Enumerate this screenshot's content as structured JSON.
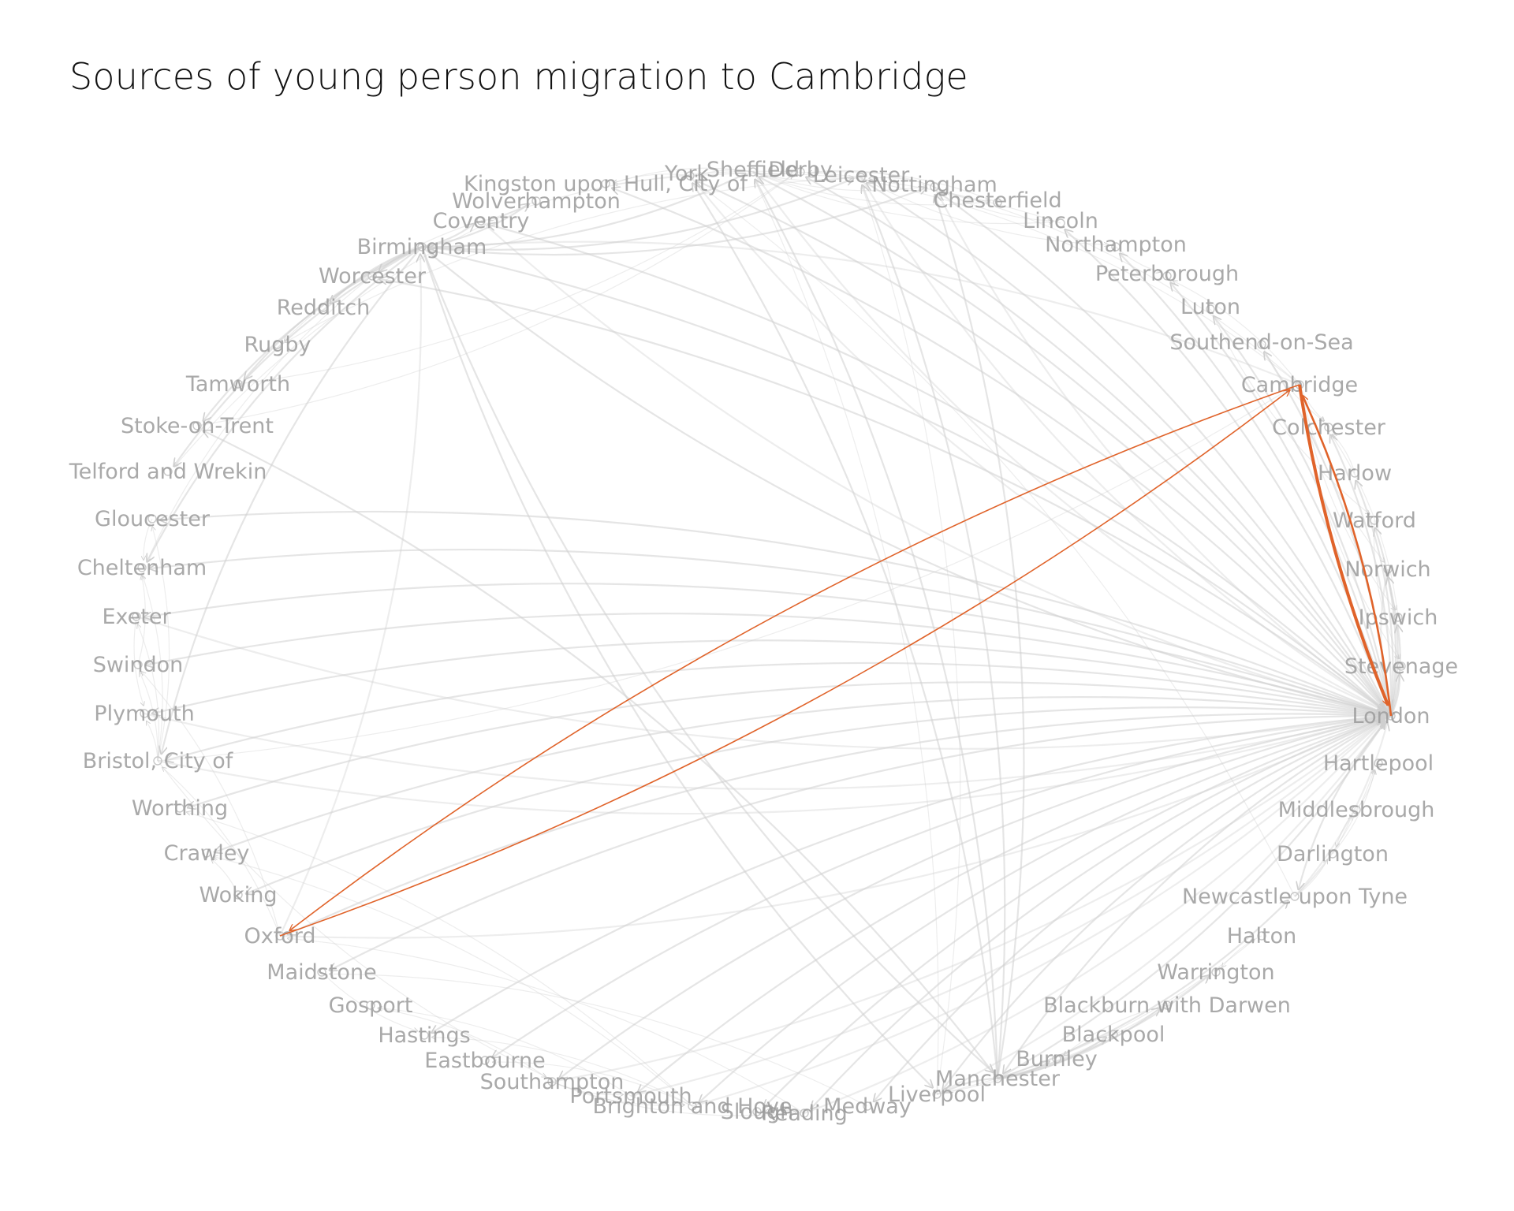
{
  "title": "Sources of young person migration to Cambridge",
  "colors": {
    "background": "#ffffff",
    "title": "#111111",
    "label": "#9a9a9a",
    "background_edge": "#cfcfcf",
    "highlight_edge": "#e0632a"
  },
  "network": {
    "focus_node": "Cambridge",
    "nodes": [
      "York",
      "Sheffield",
      "Derby",
      "Leicester",
      "Nottingham",
      "Chesterfield",
      "Lincoln",
      "Northampton",
      "Peterborough",
      "Luton",
      "Southend-on-Sea",
      "Cambridge",
      "Colchester",
      "Harlow",
      "Watford",
      "Norwich",
      "Ipswich",
      "Stevenage",
      "London",
      "Hartlepool",
      "Middlesbrough",
      "Darlington",
      "Newcastle upon Tyne",
      "Halton",
      "Warrington",
      "Blackburn with Darwen",
      "Blackpool",
      "Burnley",
      "Manchester",
      "Liverpool",
      "Medway",
      "Reading",
      "Slough",
      "Brighton and Hove",
      "Portsmouth",
      "Southampton",
      "Eastbourne",
      "Hastings",
      "Gosport",
      "Maidstone",
      "Oxford",
      "Woking",
      "Crawley",
      "Worthing",
      "Bristol, City of",
      "Plymouth",
      "Swindon",
      "Exeter",
      "Cheltenham",
      "Gloucester",
      "Telford and Wrekin",
      "Stoke-on-Trent",
      "Tamworth",
      "Rugby",
      "Redditch",
      "Worcester",
      "Birmingham",
      "Coventry",
      "Wolverhampton",
      "Kingston upon Hull, City of"
    ],
    "highlighted_flows": [
      {
        "from": "Cambridge",
        "to": "London",
        "weight": "high"
      },
      {
        "from": "London",
        "to": "Cambridge",
        "weight": "medium"
      },
      {
        "from": "Cambridge",
        "to": "Oxford",
        "weight": "low"
      },
      {
        "from": "Oxford",
        "to": "Cambridge",
        "weight": "low"
      }
    ],
    "background_flows": [
      {
        "from": "London",
        "to": "Birmingham"
      },
      {
        "from": "London",
        "to": "Oxford"
      },
      {
        "from": "London",
        "to": "Bristol, City of"
      },
      {
        "from": "London",
        "to": "Manchester"
      },
      {
        "from": "London",
        "to": "Brighton and Hove"
      },
      {
        "from": "London",
        "to": "Reading"
      },
      {
        "from": "London",
        "to": "Southampton"
      },
      {
        "from": "London",
        "to": "Portsmouth"
      },
      {
        "from": "London",
        "to": "Leicester"
      },
      {
        "from": "London",
        "to": "Sheffield"
      },
      {
        "from": "London",
        "to": "Nottingham"
      },
      {
        "from": "London",
        "to": "York"
      },
      {
        "from": "London",
        "to": "Liverpool"
      },
      {
        "from": "London",
        "to": "Slough"
      },
      {
        "from": "London",
        "to": "Medway"
      },
      {
        "from": "London",
        "to": "Exeter"
      },
      {
        "from": "London",
        "to": "Plymouth"
      },
      {
        "from": "London",
        "to": "Coventry"
      },
      {
        "from": "London",
        "to": "Newcastle upon Tyne"
      },
      {
        "from": "London",
        "to": "Norwich"
      },
      {
        "from": "London",
        "to": "Watford"
      },
      {
        "from": "London",
        "to": "Luton"
      },
      {
        "from": "London",
        "to": "Stevenage"
      },
      {
        "from": "London",
        "to": "Harlow"
      },
      {
        "from": "London",
        "to": "Colchester"
      },
      {
        "from": "London",
        "to": "Woking"
      },
      {
        "from": "London",
        "to": "Crawley"
      },
      {
        "from": "London",
        "to": "Maidstone"
      },
      {
        "from": "London",
        "to": "Swindon"
      },
      {
        "from": "London",
        "to": "Cheltenham"
      },
      {
        "from": "London",
        "to": "Worthing"
      },
      {
        "from": "London",
        "to": "Eastbourne"
      },
      {
        "from": "London",
        "to": "Hastings"
      },
      {
        "from": "London",
        "to": "Kingston upon Hull, City of"
      },
      {
        "from": "London",
        "to": "Lincoln"
      },
      {
        "from": "London",
        "to": "Derby"
      },
      {
        "from": "London",
        "to": "Gloucester"
      },
      {
        "from": "London",
        "to": "Worcester"
      },
      {
        "from": "London",
        "to": "Ipswich"
      },
      {
        "from": "London",
        "to": "Southend-on-Sea"
      },
      {
        "from": "London",
        "to": "Peterborough"
      },
      {
        "from": "London",
        "to": "Northampton"
      },
      {
        "from": "Birmingham",
        "to": "London"
      },
      {
        "from": "Manchester",
        "to": "London"
      },
      {
        "from": "Bristol, City of",
        "to": "London"
      },
      {
        "from": "Oxford",
        "to": "London"
      },
      {
        "from": "Brighton and Hove",
        "to": "London"
      },
      {
        "from": "Southampton",
        "to": "London"
      },
      {
        "from": "Leicester",
        "to": "London"
      },
      {
        "from": "Sheffield",
        "to": "London"
      },
      {
        "from": "Nottingham",
        "to": "London"
      },
      {
        "from": "Liverpool",
        "to": "London"
      },
      {
        "from": "Reading",
        "to": "London"
      },
      {
        "from": "Portsmouth",
        "to": "London"
      },
      {
        "from": "Coventry",
        "to": "London"
      },
      {
        "from": "Exeter",
        "to": "London"
      },
      {
        "from": "Plymouth",
        "to": "London"
      },
      {
        "from": "York",
        "to": "London"
      },
      {
        "from": "Newcastle upon Tyne",
        "to": "London"
      },
      {
        "from": "Norwich",
        "to": "London"
      },
      {
        "from": "Birmingham",
        "to": "Coventry"
      },
      {
        "from": "Birmingham",
        "to": "Wolverhampton"
      },
      {
        "from": "Birmingham",
        "to": "Worcester"
      },
      {
        "from": "Birmingham",
        "to": "Redditch"
      },
      {
        "from": "Birmingham",
        "to": "Bristol, City of"
      },
      {
        "from": "Birmingham",
        "to": "Manchester"
      },
      {
        "from": "Birmingham",
        "to": "Leicester"
      },
      {
        "from": "Birmingham",
        "to": "Nottingham"
      },
      {
        "from": "Birmingham",
        "to": "Sheffield"
      },
      {
        "from": "Birmingham",
        "to": "Liverpool"
      },
      {
        "from": "Birmingham",
        "to": "Cheltenham"
      },
      {
        "from": "Birmingham",
        "to": "Tamworth"
      },
      {
        "from": "Birmingham",
        "to": "Stoke-on-Trent"
      },
      {
        "from": "Birmingham",
        "to": "Telford and Wrekin"
      },
      {
        "from": "Manchester",
        "to": "Liverpool"
      },
      {
        "from": "Manchester",
        "to": "Sheffield"
      },
      {
        "from": "Manchester",
        "to": "Leicester"
      },
      {
        "from": "Manchester",
        "to": "Nottingham"
      },
      {
        "from": "Manchester",
        "to": "Blackburn with Darwen"
      },
      {
        "from": "Manchester",
        "to": "Burnley"
      },
      {
        "from": "Manchester",
        "to": "Warrington"
      },
      {
        "from": "Manchester",
        "to": "Blackpool"
      },
      {
        "from": "Manchester",
        "to": "Newcastle upon Tyne"
      },
      {
        "from": "Manchester",
        "to": "York"
      },
      {
        "from": "Manchester",
        "to": "Stoke-on-Trent"
      },
      {
        "from": "Liverpool",
        "to": "Halton"
      },
      {
        "from": "Liverpool",
        "to": "Warrington"
      },
      {
        "from": "Liverpool",
        "to": "Sheffield"
      },
      {
        "from": "Liverpool",
        "to": "Leicester"
      },
      {
        "from": "Sheffield",
        "to": "Leicester"
      },
      {
        "from": "Sheffield",
        "to": "Nottingham"
      },
      {
        "from": "Sheffield",
        "to": "York"
      },
      {
        "from": "Sheffield",
        "to": "Chesterfield"
      },
      {
        "from": "Sheffield",
        "to": "Derby"
      },
      {
        "from": "Sheffield",
        "to": "Lincoln"
      },
      {
        "from": "Sheffield",
        "to": "Kingston upon Hull, City of"
      },
      {
        "from": "Nottingham",
        "to": "Derby"
      },
      {
        "from": "Nottingham",
        "to": "Leicester"
      },
      {
        "from": "Nottingham",
        "to": "Lincoln"
      },
      {
        "from": "Nottingham",
        "to": "Chesterfield"
      },
      {
        "from": "Leicester",
        "to": "Coventry"
      },
      {
        "from": "Leicester",
        "to": "Northampton"
      },
      {
        "from": "Leicester",
        "to": "Rugby"
      },
      {
        "from": "Coventry",
        "to": "Rugby"
      },
      {
        "from": "Coventry",
        "to": "Wolverhampton"
      },
      {
        "from": "Newcastle upon Tyne",
        "to": "Middlesbrough"
      },
      {
        "from": "Newcastle upon Tyne",
        "to": "Darlington"
      },
      {
        "from": "Newcastle upon Tyne",
        "to": "Hartlepool"
      },
      {
        "from": "Newcastle upon Tyne",
        "to": "York"
      },
      {
        "from": "Middlesbrough",
        "to": "Hartlepool"
      },
      {
        "from": "Middlesbrough",
        "to": "Darlington"
      },
      {
        "from": "York",
        "to": "Kingston upon Hull, City of"
      },
      {
        "from": "Bristol, City of",
        "to": "Exeter"
      },
      {
        "from": "Bristol, City of",
        "to": "Plymouth"
      },
      {
        "from": "Bristol, City of",
        "to": "Swindon"
      },
      {
        "from": "Bristol, City of",
        "to": "Gloucester"
      },
      {
        "from": "Bristol, City of",
        "to": "Cheltenham"
      },
      {
        "from": "Bristol, City of",
        "to": "Southampton"
      },
      {
        "from": "Bristol, City of",
        "to": "Cambridge"
      },
      {
        "from": "Exeter",
        "to": "Plymouth"
      },
      {
        "from": "Gloucester",
        "to": "Cheltenham"
      },
      {
        "from": "Southampton",
        "to": "Portsmouth"
      },
      {
        "from": "Southampton",
        "to": "Brighton and Hove"
      },
      {
        "from": "Southampton",
        "to": "Gosport"
      },
      {
        "from": "Southampton",
        "to": "Reading"
      },
      {
        "from": "Portsmouth",
        "to": "Gosport"
      },
      {
        "from": "Portsmouth",
        "to": "Brighton and Hove"
      },
      {
        "from": "Brighton and Hove",
        "to": "Worthing"
      },
      {
        "from": "Brighton and Hove",
        "to": "Eastbourne"
      },
      {
        "from": "Brighton and Hove",
        "to": "Hastings"
      },
      {
        "from": "Brighton and Hove",
        "to": "Crawley"
      },
      {
        "from": "Reading",
        "to": "Slough"
      },
      {
        "from": "Reading",
        "to": "Oxford"
      },
      {
        "from": "Oxford",
        "to": "Birmingham"
      },
      {
        "from": "Oxford",
        "to": "Bristol, City of"
      },
      {
        "from": "Oxford",
        "to": "Swindon"
      },
      {
        "from": "Medway",
        "to": "Maidstone"
      },
      {
        "from": "Cambridge",
        "to": "Peterborough"
      },
      {
        "from": "Cambridge",
        "to": "Norwich"
      },
      {
        "from": "Cambridge",
        "to": "Ipswich"
      },
      {
        "from": "Cambridge",
        "to": "Colchester"
      },
      {
        "from": "Cambridge",
        "to": "Stevenage"
      },
      {
        "from": "Cambridge",
        "to": "Birmingham"
      },
      {
        "from": "Cambridge",
        "to": "Leicester"
      },
      {
        "from": "Cambridge",
        "to": "Nottingham"
      },
      {
        "from": "Norwich",
        "to": "Ipswich"
      },
      {
        "from": "Ipswich",
        "to": "Colchester"
      },
      {
        "from": "Luton",
        "to": "Watford"
      },
      {
        "from": "Watford",
        "to": "Stevenage"
      },
      {
        "from": "Harlow",
        "to": "Colchester"
      },
      {
        "from": "Worcester",
        "to": "Redditch"
      },
      {
        "from": "Worcester",
        "to": "Cheltenham"
      },
      {
        "from": "Wolverhampton",
        "to": "Telford and Wrekin"
      },
      {
        "from": "Stoke-on-Trent",
        "to": "Derby"
      },
      {
        "from": "Tamworth",
        "to": "Derby"
      },
      {
        "from": "Blackpool",
        "to": "Burnley"
      },
      {
        "from": "Blackburn with Darwen",
        "to": "Burnley"
      },
      {
        "from": "Halton",
        "to": "Warrington"
      },
      {
        "from": "Darlington",
        "to": "Hartlepool"
      },
      {
        "from": "Chesterfield",
        "to": "Derby"
      },
      {
        "from": "Lincoln",
        "to": "Kingston upon Hull, City of"
      },
      {
        "from": "Northampton",
        "to": "Peterborough"
      },
      {
        "from": "Southend-on-Sea",
        "to": "Colchester"
      },
      {
        "from": "Woking",
        "to": "Crawley"
      },
      {
        "from": "Maidstone",
        "to": "Hastings"
      },
      {
        "from": "Swindon",
        "to": "Cheltenham"
      }
    ]
  }
}
